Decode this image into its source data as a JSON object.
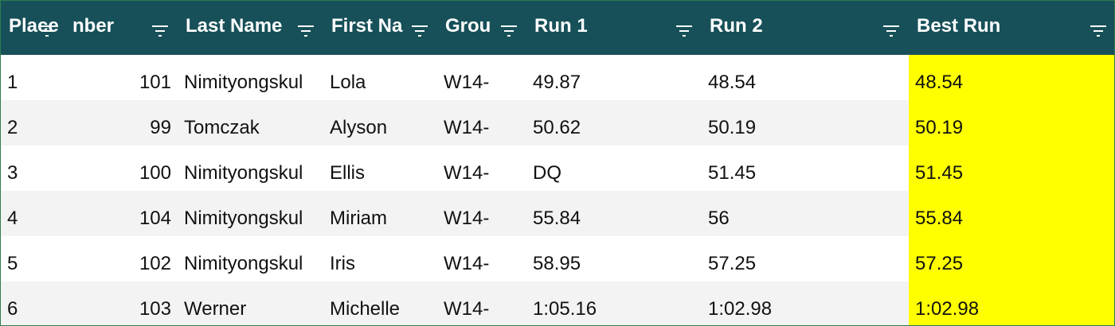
{
  "table": {
    "header": [
      "Place",
      "nber",
      "Last Name",
      "First Na",
      "Grou",
      "Run 1",
      "Run 2",
      "Best Run"
    ],
    "rows": [
      [
        "1",
        "101",
        "Nimityongskul",
        "Lola",
        "W14-",
        "49.87",
        "48.54",
        "48.54"
      ],
      [
        "2",
        "99",
        "Tomczak",
        "Alyson",
        "W14-",
        "50.62",
        "50.19",
        "50.19"
      ],
      [
        "3",
        "100",
        "Nimityongskul",
        "Ellis",
        "W14-",
        "DQ",
        "51.45",
        "51.45"
      ],
      [
        "4",
        "104",
        "Nimityongskul",
        "Miriam",
        "W14-",
        "55.84",
        "56",
        "55.84"
      ],
      [
        "5",
        "102",
        "Nimityongskul",
        "Iris",
        "W14-",
        "58.95",
        "57.25",
        "57.25"
      ],
      [
        "6",
        "103",
        "Werner",
        "Michelle",
        "W14-",
        "1:05.16",
        "1:02.98",
        "1:02.98"
      ]
    ]
  }
}
